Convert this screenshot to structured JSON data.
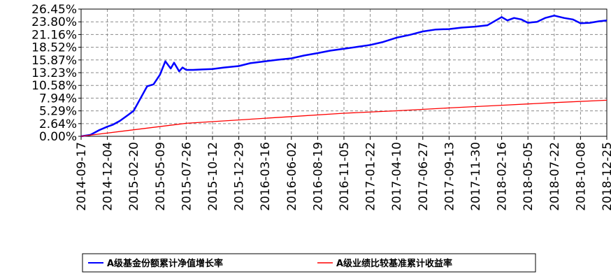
{
  "chart_data": {
    "type": "line",
    "ylim": [
      0,
      26.45
    ],
    "y_ticks": [
      "26.45%",
      "23.80%",
      "21.16%",
      "18.52%",
      "15.87%",
      "13.23%",
      "10.58%",
      "7.94%",
      "5.29%",
      "2.64%",
      "0.00%"
    ],
    "y_tick_values": [
      26.45,
      23.8,
      21.16,
      18.52,
      15.87,
      13.23,
      10.58,
      7.94,
      5.29,
      2.64,
      0.0
    ],
    "x_ticks": [
      "2014-09-17",
      "2014-12-04",
      "2015-02-20",
      "2015-05-09",
      "2015-07-26",
      "2015-10-12",
      "2015-12-29",
      "2016-03-16",
      "2016-06-02",
      "2016-08-19",
      "2016-11-05",
      "2017-01-22",
      "2017-04-10",
      "2017-06-27",
      "2017-09-13",
      "2017-11-30",
      "2018-02-16",
      "2018-05-05",
      "2018-07-22",
      "2018-10-08",
      "2018-12-25"
    ],
    "grid": true,
    "legend_position": "bottom",
    "series": [
      {
        "name": "A级基金份额累计净值增长率",
        "color": "#0000ff",
        "x": [
          "2014-09-17",
          "2014-10-15",
          "2014-11-10",
          "2014-12-04",
          "2014-12-20",
          "2015-01-10",
          "2015-02-01",
          "2015-02-20",
          "2015-03-10",
          "2015-04-01",
          "2015-04-20",
          "2015-05-09",
          "2015-05-25",
          "2015-06-10",
          "2015-06-20",
          "2015-07-05",
          "2015-07-15",
          "2015-07-26",
          "2015-08-15",
          "2015-09-10",
          "2015-10-12",
          "2015-11-15",
          "2015-12-29",
          "2016-02-01",
          "2016-03-16",
          "2016-04-20",
          "2016-06-02",
          "2016-07-10",
          "2016-08-19",
          "2016-09-25",
          "2016-11-05",
          "2016-12-15",
          "2017-01-22",
          "2017-03-01",
          "2017-04-10",
          "2017-05-20",
          "2017-06-27",
          "2017-08-05",
          "2017-09-13",
          "2017-10-20",
          "2017-11-30",
          "2018-01-05",
          "2018-02-16",
          "2018-03-05",
          "2018-03-25",
          "2018-04-15",
          "2018-05-05",
          "2018-06-01",
          "2018-06-25",
          "2018-07-22",
          "2018-08-20",
          "2018-09-15",
          "2018-10-08",
          "2018-11-05",
          "2018-12-01",
          "2018-12-25"
        ],
        "values": [
          0.0,
          0.3,
          1.3,
          2.0,
          2.4,
          3.2,
          4.3,
          5.3,
          7.6,
          10.4,
          10.8,
          12.8,
          15.6,
          14.1,
          15.3,
          13.5,
          14.3,
          13.8,
          13.8,
          13.9,
          14.0,
          14.3,
          14.6,
          15.2,
          15.6,
          15.9,
          16.2,
          16.8,
          17.3,
          17.8,
          18.2,
          18.6,
          19.0,
          19.6,
          20.5,
          21.1,
          21.8,
          22.2,
          22.3,
          22.6,
          22.8,
          23.1,
          24.8,
          24.1,
          24.6,
          24.3,
          23.6,
          23.8,
          24.6,
          25.1,
          24.6,
          24.3,
          23.5,
          23.6,
          23.9,
          24.1
        ]
      },
      {
        "name": "A级业绩比较基准累计收益率",
        "color": "#ff0000",
        "x": [
          "2014-09-17",
          "2015-02-20",
          "2015-07-26",
          "2015-12-29",
          "2016-06-02",
          "2016-11-05",
          "2017-04-10",
          "2017-09-13",
          "2018-02-16",
          "2018-07-22",
          "2018-12-25"
        ],
        "values": [
          0.0,
          1.35,
          2.7,
          3.4,
          4.1,
          4.8,
          5.3,
          5.9,
          6.45,
          7.0,
          7.5
        ]
      }
    ]
  },
  "legend": {
    "items": [
      {
        "label": "A级基金份额累计净值增长率",
        "color": "#0000ff"
      },
      {
        "label": "A级业绩比较基准累计收益率",
        "color": "#ff0000"
      }
    ]
  }
}
